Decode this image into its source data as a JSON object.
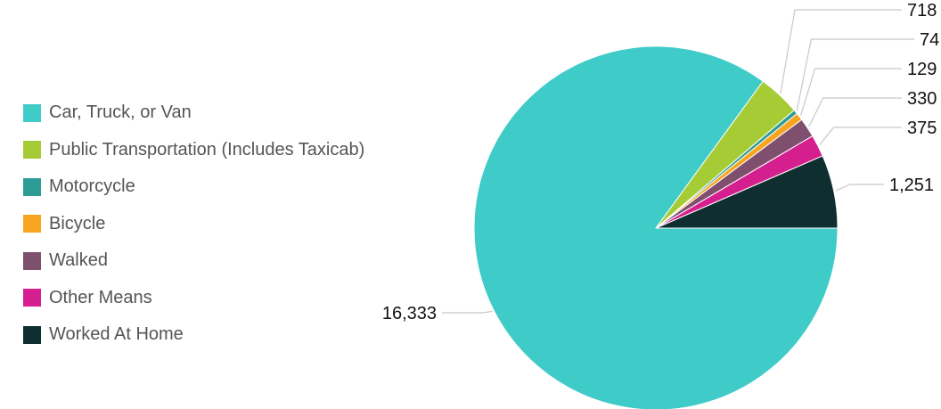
{
  "chart_data": {
    "type": "pie",
    "title": "",
    "legend_position": "left",
    "series": [
      {
        "name": "Car, Truck, or Van",
        "value": 16333,
        "label": "16,333",
        "color": "#3fcbc8"
      },
      {
        "name": "Public Transportation (Includes Taxicab)",
        "value": 718,
        "label": "718",
        "color": "#a6cc35"
      },
      {
        "name": "Motorcycle",
        "value": 74,
        "label": "74",
        "color": "#2d9c94"
      },
      {
        "name": "Bicycle",
        "value": 129,
        "label": "129",
        "color": "#f7a520"
      },
      {
        "name": "Walked",
        "value": 330,
        "label": "330",
        "color": "#7f4f6e"
      },
      {
        "name": "Other Means",
        "value": 375,
        "label": "375",
        "color": "#d51f8e"
      },
      {
        "name": "Worked At Home",
        "value": 1251,
        "label": "1,251",
        "color": "#0f2e30"
      }
    ]
  }
}
